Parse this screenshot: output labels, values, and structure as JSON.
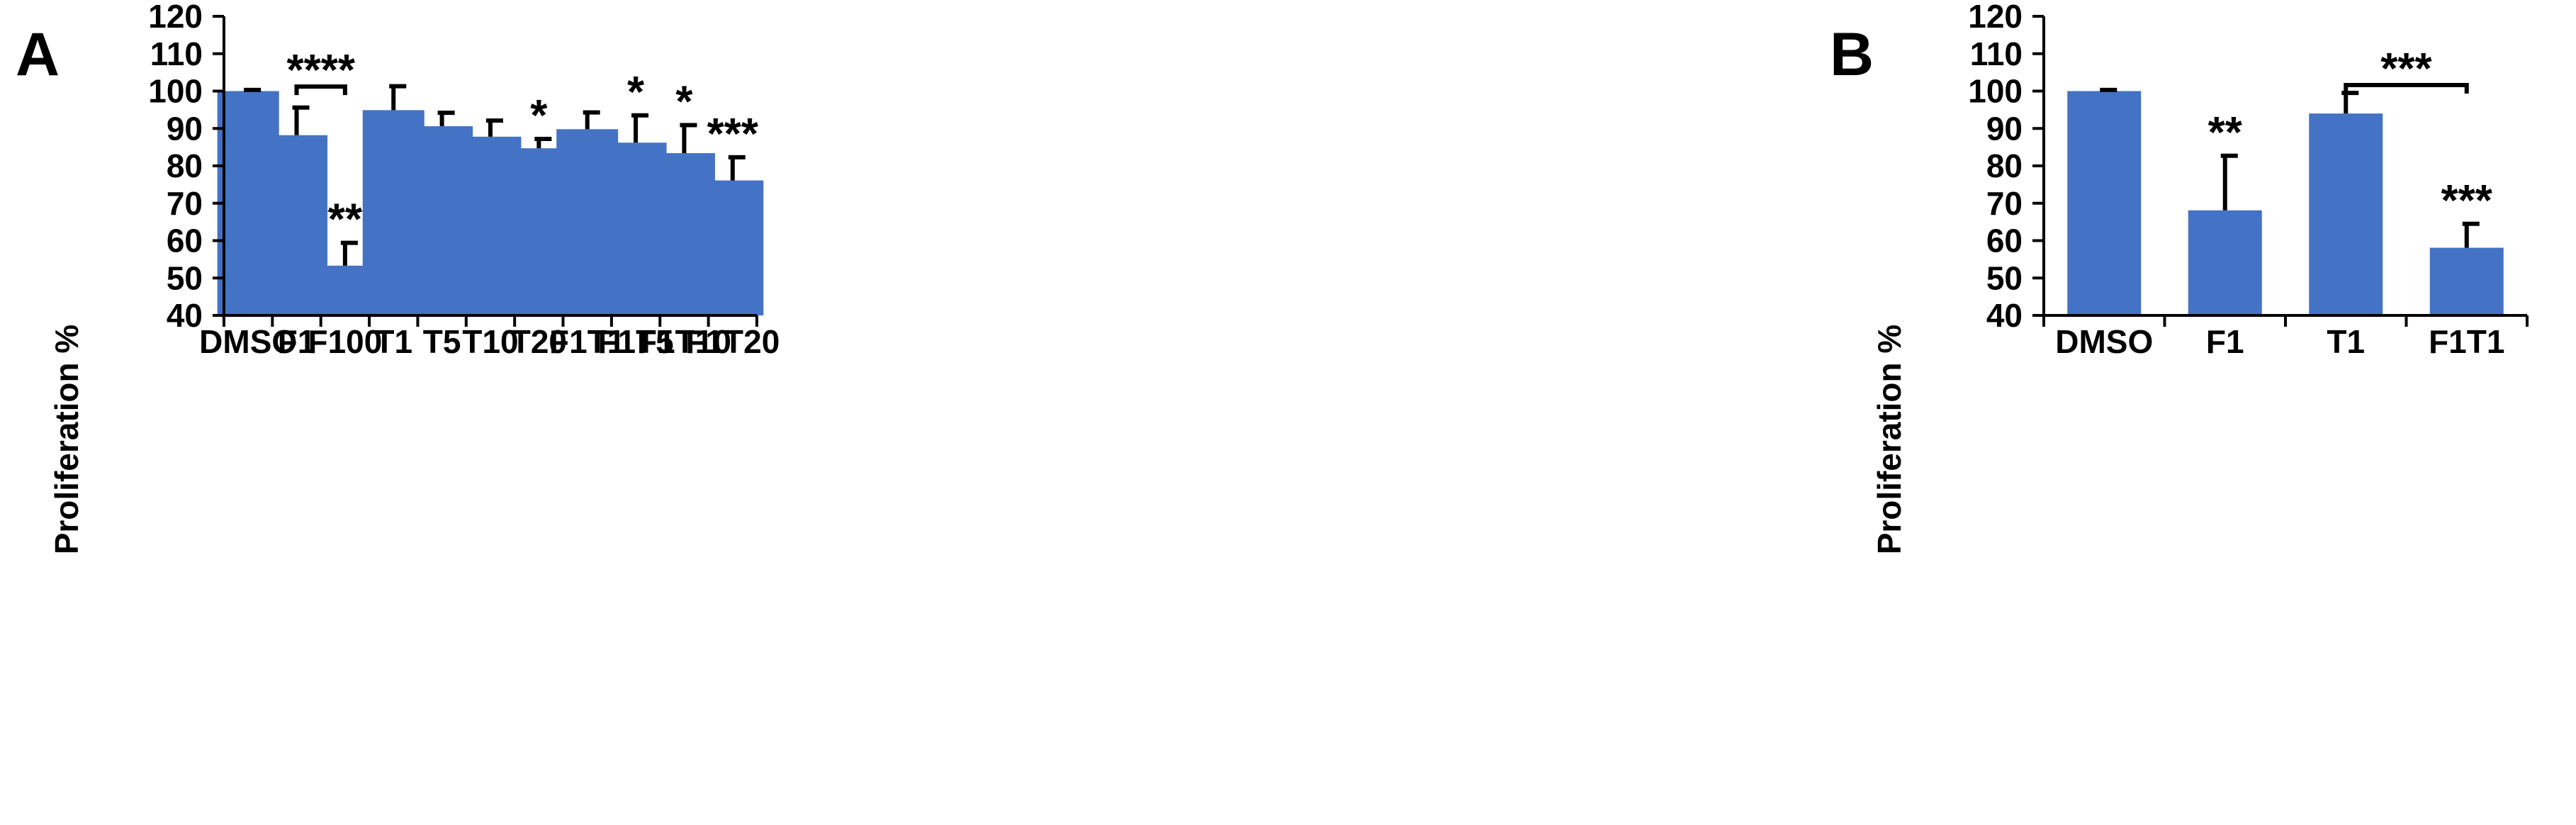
{
  "colors": {
    "bar": "#4472C4",
    "axis": "#000000",
    "error": "#000000"
  },
  "chart_data": [
    {
      "type": "bar",
      "panel_label": "A",
      "ylabel": "Proliferation %",
      "ylim": [
        40,
        120
      ],
      "yticks": [
        "40",
        "50",
        "60",
        "70",
        "80",
        "90",
        "100",
        "110",
        "120"
      ],
      "ytick_values": [
        40,
        50,
        60,
        70,
        80,
        90,
        100,
        110,
        120
      ],
      "grid": false,
      "categories": [
        "DMSO",
        "F1",
        "F100",
        "T1",
        "T5",
        "T10",
        "T20",
        "F1T1",
        "F1T5",
        "F1T10",
        "F1T20"
      ],
      "values": [
        100,
        88.2,
        53.3,
        94.9,
        90.6,
        87.8,
        84.7,
        89.8,
        86.2,
        83.4,
        76.1
      ],
      "error_plus": [
        0.3,
        7.4,
        6.1,
        6.4,
        3.6,
        4.3,
        2.5,
        4.5,
        7.3,
        7.5,
        6.2
      ],
      "significance": [
        "",
        "",
        "****",
        "",
        "",
        "",
        "*",
        "",
        "*",
        "*",
        "***"
      ],
      "brackets": [
        {
          "from": 1,
          "to": 2,
          "label": "****",
          "y": 101.2
        }
      ]
    },
    {
      "type": "bar",
      "panel_label": "B",
      "ylabel": "Proliferation %",
      "ylim": [
        40,
        120
      ],
      "yticks": [
        "40",
        "50",
        "60",
        "70",
        "80",
        "90",
        "100",
        "110",
        "120"
      ],
      "ytick_values": [
        40,
        50,
        60,
        70,
        80,
        90,
        100,
        110,
        120
      ],
      "grid": false,
      "categories": [
        "DMSO",
        "F1",
        "T1",
        "F1T1"
      ],
      "values": [
        100,
        68.1,
        94.0,
        58.1
      ],
      "error_plus": [
        0.3,
        14.6,
        5.5,
        6.4
      ],
      "significance": [
        "",
        "**",
        "",
        "***"
      ],
      "brackets": [
        {
          "from": 2,
          "to": 3,
          "label": "***",
          "y": 101.6
        }
      ]
    }
  ]
}
